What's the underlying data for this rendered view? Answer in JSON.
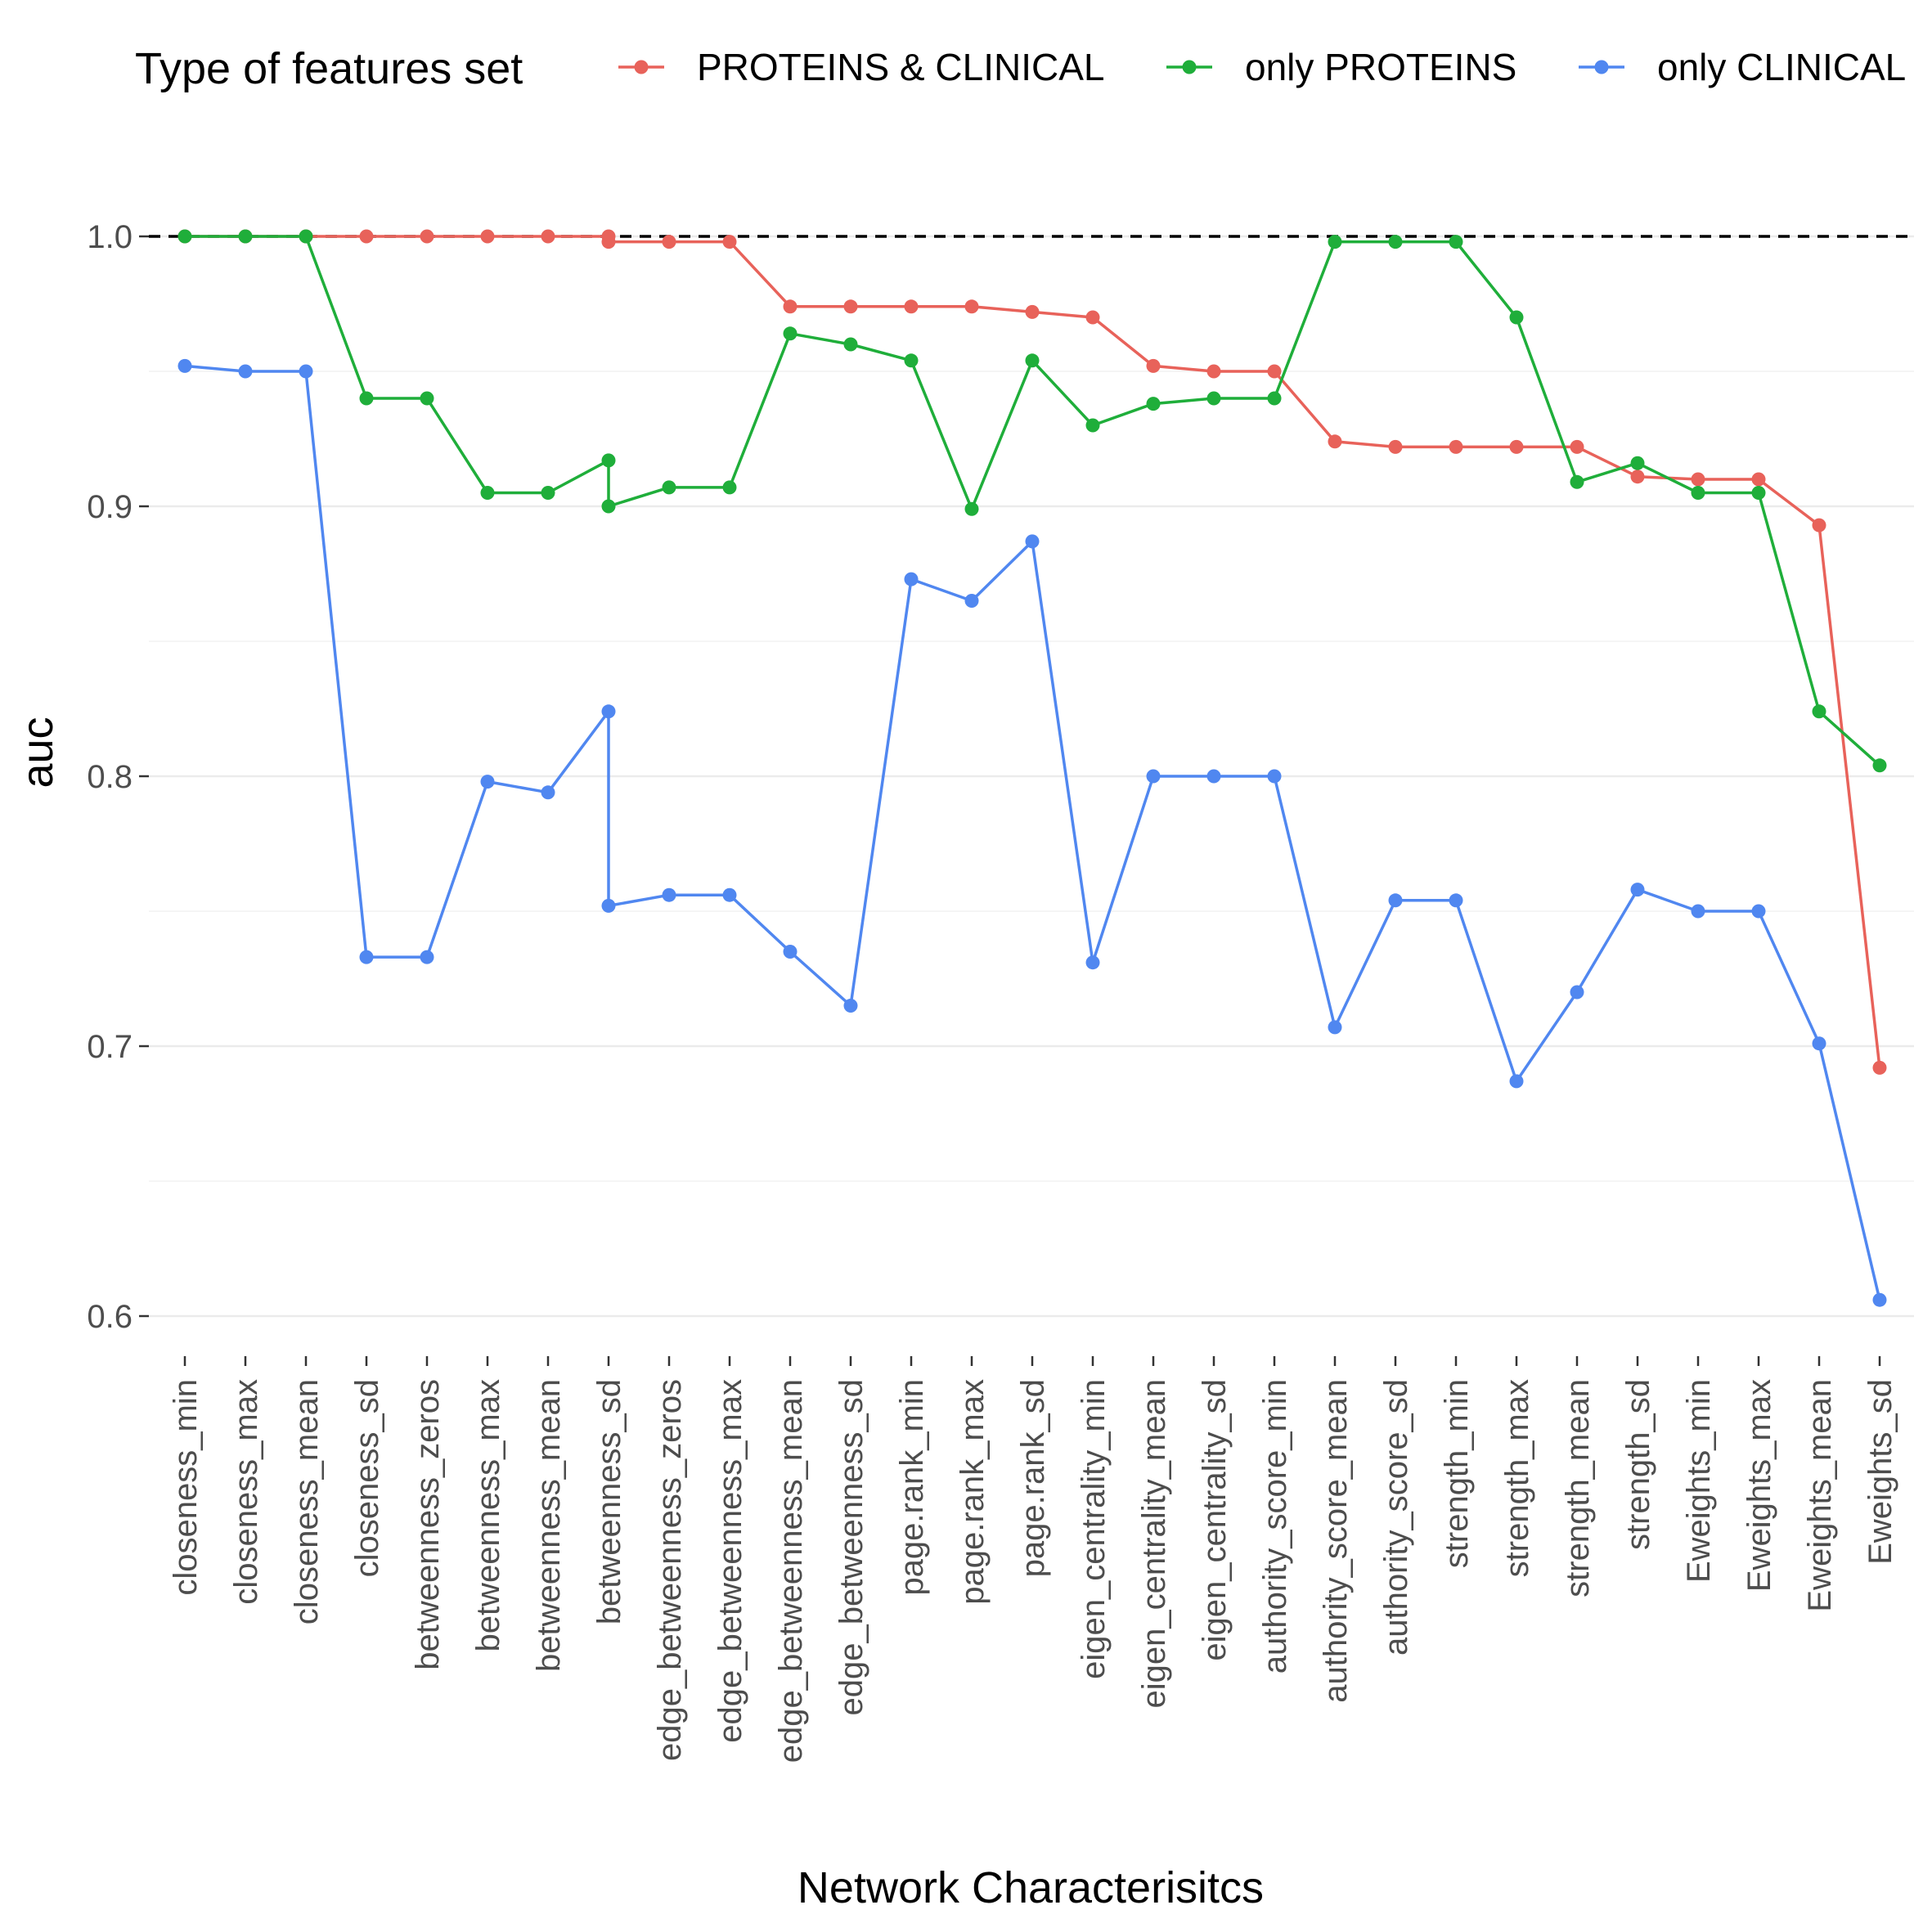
{
  "chart_data": {
    "type": "line",
    "title": "",
    "xlabel": "Network Characterisitcs",
    "ylabel": "auc",
    "ylim": [
      0.59,
      1.03
    ],
    "yticks": [
      "0.6",
      "0.7",
      "0.8",
      "0.9",
      "1.0"
    ],
    "reference_line": 1.0,
    "grid": "horizontal major and minor",
    "legend_title": "Type of features set",
    "legend_position": "top",
    "categories": [
      "closeness_min",
      "closeness_max",
      "closeness_mean",
      "closeness_sd",
      "betweenness_zeros",
      "betweenness_max",
      "betweenness_mean",
      "betweenness_sd",
      "edge_betweenness_zeros",
      "edge_betweenness_max",
      "edge_betweenness_mean",
      "edge_betweenness_sd",
      "page.rank_min",
      "page.rank_max",
      "page.rank_sd",
      "eigen_centrality_min",
      "eigen_centrality_mean",
      "eigen_centrality_sd",
      "authority_score_min",
      "authority_score_mean",
      "authority_score_sd",
      "strength_min",
      "strength_max",
      "strength_mean",
      "strength_sd",
      "Eweights_min",
      "Eweights_max",
      "Eweights_mean",
      "Eweights_sd"
    ],
    "series": [
      {
        "name": "PROTEINS & CLINICAL",
        "color": "#E8625A",
        "points": [
          [
            0,
            1.0
          ],
          [
            1,
            1.0
          ],
          [
            2,
            1.0
          ],
          [
            3,
            1.0
          ],
          [
            4,
            1.0
          ],
          [
            5,
            1.0
          ],
          [
            6,
            1.0
          ],
          [
            7,
            1.0
          ],
          [
            7,
            0.998
          ],
          [
            8,
            0.998
          ],
          [
            9,
            0.998
          ],
          [
            10,
            0.974
          ],
          [
            11,
            0.974
          ],
          [
            12,
            0.974
          ],
          [
            13,
            0.974
          ],
          [
            14,
            0.972
          ],
          [
            15,
            0.97
          ],
          [
            16,
            0.952
          ],
          [
            17,
            0.95
          ],
          [
            18,
            0.95
          ],
          [
            19,
            0.924
          ],
          [
            20,
            0.922
          ],
          [
            21,
            0.922
          ],
          [
            22,
            0.922
          ],
          [
            23,
            0.922
          ],
          [
            24,
            0.911
          ],
          [
            25,
            0.91
          ],
          [
            26,
            0.91
          ],
          [
            27,
            0.893
          ],
          [
            28,
            0.692
          ]
        ]
      },
      {
        "name": "only PROTEINS",
        "color": "#1FAE3A",
        "points": [
          [
            0,
            1.0
          ],
          [
            1,
            1.0
          ],
          [
            2,
            1.0
          ],
          [
            3,
            0.94
          ],
          [
            4,
            0.94
          ],
          [
            5,
            0.905
          ],
          [
            6,
            0.905
          ],
          [
            7,
            0.917
          ],
          [
            7,
            0.9
          ],
          [
            8,
            0.907
          ],
          [
            9,
            0.907
          ],
          [
            10,
            0.964
          ],
          [
            11,
            0.96
          ],
          [
            12,
            0.954
          ],
          [
            13,
            0.899
          ],
          [
            14,
            0.954
          ],
          [
            15,
            0.93
          ],
          [
            16,
            0.938
          ],
          [
            17,
            0.94
          ],
          [
            18,
            0.94
          ],
          [
            19,
            0.998
          ],
          [
            20,
            0.998
          ],
          [
            21,
            0.998
          ],
          [
            22,
            0.97
          ],
          [
            23,
            0.909
          ],
          [
            24,
            0.916
          ],
          [
            25,
            0.905
          ],
          [
            26,
            0.905
          ],
          [
            27,
            0.824
          ],
          [
            28,
            0.804
          ]
        ]
      },
      {
        "name": "only CLINICAL",
        "color": "#5087F0",
        "points": [
          [
            0,
            0.952
          ],
          [
            1,
            0.95
          ],
          [
            2,
            0.95
          ],
          [
            3,
            0.733
          ],
          [
            4,
            0.733
          ],
          [
            5,
            0.798
          ],
          [
            6,
            0.794
          ],
          [
            7,
            0.824
          ],
          [
            7,
            0.752
          ],
          [
            8,
            0.756
          ],
          [
            9,
            0.756
          ],
          [
            10,
            0.735
          ],
          [
            11,
            0.715
          ],
          [
            12,
            0.873
          ],
          [
            13,
            0.865
          ],
          [
            14,
            0.887
          ],
          [
            15,
            0.731
          ],
          [
            16,
            0.8
          ],
          [
            17,
            0.8
          ],
          [
            18,
            0.8
          ],
          [
            19,
            0.707
          ],
          [
            20,
            0.754
          ],
          [
            21,
            0.754
          ],
          [
            22,
            0.687
          ],
          [
            23,
            0.72
          ],
          [
            24,
            0.758
          ],
          [
            25,
            0.75
          ],
          [
            26,
            0.75
          ],
          [
            27,
            0.701
          ],
          [
            28,
            0.606
          ]
        ]
      }
    ]
  }
}
